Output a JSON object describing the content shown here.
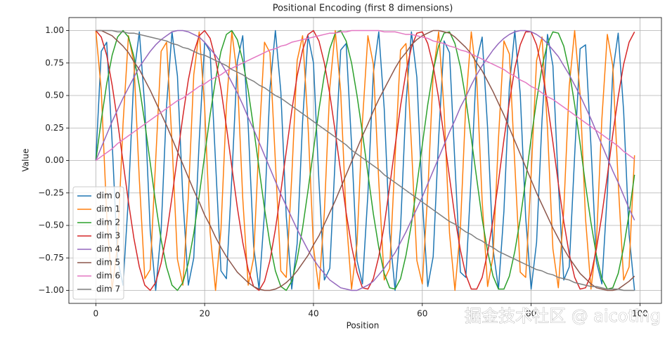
{
  "chart_data": {
    "type": "line",
    "title": "Positional Encoding (first 8 dimensions)",
    "x_label": "Position",
    "y_label": "Value",
    "watermark": "掘金技术社区 @ aicoting",
    "x": [
      0,
      1,
      2,
      3,
      4,
      5,
      6,
      7,
      8,
      9,
      10,
      11,
      12,
      13,
      14,
      15,
      16,
      17,
      18,
      19,
      20,
      21,
      22,
      23,
      24,
      25,
      26,
      27,
      28,
      29,
      30,
      31,
      32,
      33,
      34,
      35,
      36,
      37,
      38,
      39,
      40,
      41,
      42,
      43,
      44,
      45,
      46,
      47,
      48,
      49,
      50,
      51,
      52,
      53,
      54,
      55,
      56,
      57,
      58,
      59,
      60,
      61,
      62,
      63,
      64,
      65,
      66,
      67,
      68,
      69,
      70,
      71,
      72,
      73,
      74,
      75,
      76,
      77,
      78,
      79,
      80,
      81,
      82,
      83,
      84,
      85,
      86,
      87,
      88,
      89,
      90,
      91,
      92,
      93,
      94,
      95,
      96,
      97,
      98,
      99
    ],
    "series": [
      {
        "name": "dim 0",
        "color": "#1f77b4",
        "values": [
          0,
          0.84,
          0.91,
          0.14,
          -0.76,
          -0.96,
          -0.28,
          0.66,
          0.99,
          0.41,
          -0.54,
          -1.0,
          -0.54,
          0.42,
          0.99,
          0.65,
          -0.29,
          -0.96,
          -0.75,
          0.15,
          0.91,
          0.84,
          -0.01,
          -0.85,
          -0.91,
          -0.13,
          0.76,
          0.96,
          0.27,
          -0.66,
          -0.99,
          -0.4,
          0.55,
          1.0,
          0.53,
          -0.43,
          -0.99,
          -0.64,
          0.3,
          0.96,
          0.75,
          -0.16,
          -0.92,
          -0.83,
          0.02,
          0.85,
          0.9,
          0.12,
          -0.77,
          -0.95,
          -0.26,
          0.67,
          0.99,
          0.4,
          -0.56,
          -1.0,
          -0.52,
          0.44,
          0.99,
          0.64,
          -0.3,
          -0.97,
          -0.74,
          0.17,
          0.92,
          0.83,
          -0.03,
          -0.86,
          -0.9,
          -0.11,
          0.77,
          0.95,
          0.25,
          -0.68,
          -0.99,
          -0.39,
          0.57,
          1.0,
          0.51,
          -0.44,
          -0.99,
          -0.63,
          0.31,
          0.97,
          0.73,
          -0.18,
          -0.92,
          -0.82,
          0.04,
          0.86,
          0.89,
          0.11,
          -0.78,
          -0.95,
          -0.25,
          0.68,
          0.98,
          0.38,
          -0.57,
          -1.0
        ]
      },
      {
        "name": "dim 1",
        "color": "#ff7f0e",
        "values": [
          1,
          0.54,
          -0.42,
          -0.99,
          -0.65,
          0.28,
          0.96,
          0.75,
          -0.15,
          -0.91,
          -0.84,
          0.0,
          0.84,
          0.91,
          0.14,
          -0.76,
          -0.96,
          -0.28,
          0.66,
          0.99,
          0.41,
          -0.55,
          -1.0,
          -0.53,
          0.42,
          0.99,
          0.65,
          -0.29,
          -0.96,
          -0.75,
          0.15,
          0.91,
          0.83,
          -0.01,
          -0.85,
          -0.9,
          -0.13,
          0.77,
          0.96,
          0.27,
          -0.67,
          -0.99,
          -0.4,
          0.56,
          1.0,
          0.53,
          -0.43,
          -0.99,
          -0.64,
          0.3,
          0.96,
          0.74,
          -0.16,
          -0.92,
          -0.83,
          0.02,
          0.85,
          0.9,
          0.12,
          -0.77,
          -0.95,
          -0.25,
          0.67,
          0.99,
          0.39,
          -0.56,
          -1.0,
          -0.52,
          0.44,
          0.99,
          0.63,
          -0.31,
          -0.97,
          -0.74,
          0.17,
          0.92,
          0.82,
          -0.03,
          -0.86,
          -0.9,
          -0.11,
          0.77,
          0.95,
          0.25,
          -0.68,
          -0.98,
          -0.38,
          0.57,
          1.0,
          0.51,
          -0.45,
          -0.99,
          -0.63,
          0.32,
          0.97,
          0.73,
          -0.17,
          -0.92,
          -0.82,
          0.04
        ]
      },
      {
        "name": "dim 2",
        "color": "#2ca02c",
        "values": [
          0,
          0.31,
          0.59,
          0.81,
          0.95,
          1.0,
          0.95,
          0.8,
          0.57,
          0.29,
          -0.02,
          -0.33,
          -0.61,
          -0.82,
          -0.96,
          -1.0,
          -0.94,
          -0.79,
          -0.56,
          -0.27,
          0.04,
          0.35,
          0.62,
          0.84,
          0.97,
          1.0,
          0.93,
          0.77,
          0.54,
          0.25,
          -0.06,
          -0.37,
          -0.64,
          -0.85,
          -0.97,
          -1.0,
          -0.93,
          -0.76,
          -0.52,
          -0.23,
          0.08,
          0.39,
          0.66,
          0.86,
          0.98,
          1.0,
          0.92,
          0.75,
          0.5,
          0.21,
          -0.1,
          -0.41,
          -0.67,
          -0.87,
          -0.98,
          -0.99,
          -0.91,
          -0.73,
          -0.49,
          -0.19,
          0.12,
          0.43,
          0.69,
          0.88,
          0.98,
          0.99,
          0.9,
          0.72,
          0.47,
          0.17,
          -0.14,
          -0.45,
          -0.7,
          -0.89,
          -0.99,
          -0.99,
          -0.89,
          -0.7,
          -0.45,
          -0.15,
          0.17,
          0.46,
          0.72,
          0.9,
          0.99,
          0.98,
          0.88,
          0.69,
          0.43,
          0.13,
          -0.19,
          -0.48,
          -0.73,
          -0.91,
          -0.99,
          -0.98,
          -0.87,
          -0.67,
          -0.41,
          -0.11
        ]
      },
      {
        "name": "dim 3",
        "color": "#d62728",
        "values": [
          1,
          0.95,
          0.81,
          0.58,
          0.3,
          -0.01,
          -0.32,
          -0.6,
          -0.82,
          -0.96,
          -1.0,
          -0.94,
          -0.79,
          -0.57,
          -0.28,
          0.03,
          0.34,
          0.62,
          0.83,
          0.96,
          1.0,
          0.94,
          0.78,
          0.55,
          0.26,
          -0.05,
          -0.36,
          -0.63,
          -0.84,
          -0.97,
          -1.0,
          -0.93,
          -0.77,
          -0.53,
          -0.24,
          0.07,
          0.38,
          0.65,
          0.85,
          0.97,
          1.0,
          0.92,
          0.75,
          0.51,
          0.22,
          -0.09,
          -0.4,
          -0.66,
          -0.86,
          -0.98,
          -0.99,
          -0.91,
          -0.74,
          -0.5,
          -0.2,
          0.11,
          0.42,
          0.68,
          0.87,
          0.98,
          0.99,
          0.9,
          0.73,
          0.48,
          0.18,
          -0.13,
          -0.44,
          -0.69,
          -0.88,
          -0.99,
          -0.99,
          -0.9,
          -0.71,
          -0.46,
          -0.16,
          0.16,
          0.45,
          0.71,
          0.89,
          0.99,
          0.99,
          0.89,
          0.7,
          0.44,
          0.14,
          -0.18,
          -0.47,
          -0.72,
          -0.9,
          -0.99,
          -0.98,
          -0.88,
          -0.68,
          -0.42,
          -0.12,
          0.2,
          0.49,
          0.74,
          0.91,
          0.99
        ]
      },
      {
        "name": "dim 4",
        "color": "#9467bd",
        "values": [
          0,
          0.1,
          0.2,
          0.3,
          0.39,
          0.48,
          0.56,
          0.64,
          0.72,
          0.78,
          0.84,
          0.89,
          0.93,
          0.96,
          0.99,
          1.0,
          1.0,
          0.99,
          0.97,
          0.95,
          0.91,
          0.86,
          0.81,
          0.75,
          0.68,
          0.6,
          0.52,
          0.43,
          0.33,
          0.24,
          0.14,
          0.04,
          -0.06,
          -0.16,
          -0.26,
          -0.35,
          -0.44,
          -0.53,
          -0.61,
          -0.69,
          -0.76,
          -0.82,
          -0.87,
          -0.92,
          -0.95,
          -0.98,
          -0.99,
          -1.0,
          -1.0,
          -0.98,
          -0.96,
          -0.93,
          -0.88,
          -0.83,
          -0.77,
          -0.71,
          -0.63,
          -0.55,
          -0.46,
          -0.37,
          -0.28,
          -0.18,
          -0.08,
          0.02,
          0.12,
          0.22,
          0.31,
          0.41,
          0.49,
          0.58,
          0.66,
          0.73,
          0.79,
          0.85,
          0.9,
          0.94,
          0.97,
          0.99,
          1.0,
          1.0,
          0.99,
          0.97,
          0.94,
          0.9,
          0.85,
          0.8,
          0.73,
          0.66,
          0.58,
          0.5,
          0.41,
          0.32,
          0.22,
          0.12,
          0.02,
          -0.08,
          -0.17,
          -0.27,
          -0.37,
          -0.46
        ]
      },
      {
        "name": "dim 5",
        "color": "#8c564b",
        "values": [
          1,
          1.0,
          0.98,
          0.96,
          0.92,
          0.88,
          0.83,
          0.76,
          0.7,
          0.62,
          0.54,
          0.45,
          0.36,
          0.27,
          0.17,
          0.07,
          -0.03,
          -0.13,
          -0.23,
          -0.32,
          -0.42,
          -0.5,
          -0.59,
          -0.67,
          -0.74,
          -0.8,
          -0.86,
          -0.9,
          -0.94,
          -0.97,
          -0.99,
          -1.0,
          -1.0,
          -0.99,
          -0.97,
          -0.94,
          -0.9,
          -0.85,
          -0.79,
          -0.73,
          -0.65,
          -0.58,
          -0.49,
          -0.4,
          -0.31,
          -0.21,
          -0.11,
          -0.01,
          0.09,
          0.19,
          0.28,
          0.38,
          0.47,
          0.55,
          0.63,
          0.71,
          0.78,
          0.83,
          0.89,
          0.93,
          0.96,
          0.98,
          1.0,
          1.0,
          0.99,
          0.98,
          0.95,
          0.91,
          0.87,
          0.82,
          0.75,
          0.69,
          0.61,
          0.53,
          0.44,
          0.35,
          0.25,
          0.15,
          0.05,
          -0.05,
          -0.15,
          -0.25,
          -0.34,
          -0.43,
          -0.52,
          -0.6,
          -0.68,
          -0.75,
          -0.81,
          -0.87,
          -0.91,
          -0.95,
          -0.98,
          -0.99,
          -1.0,
          -1.0,
          -0.99,
          -0.96,
          -0.93,
          -0.89
        ]
      },
      {
        "name": "dim 6",
        "color": "#e377c2",
        "values": [
          0,
          0.03,
          0.06,
          0.09,
          0.13,
          0.16,
          0.19,
          0.22,
          0.25,
          0.28,
          0.31,
          0.34,
          0.37,
          0.4,
          0.43,
          0.46,
          0.48,
          0.51,
          0.54,
          0.57,
          0.59,
          0.62,
          0.64,
          0.66,
          0.69,
          0.71,
          0.73,
          0.75,
          0.77,
          0.79,
          0.81,
          0.83,
          0.85,
          0.86,
          0.88,
          0.89,
          0.91,
          0.92,
          0.93,
          0.94,
          0.95,
          0.96,
          0.97,
          0.98,
          0.98,
          0.99,
          0.99,
          1.0,
          1.0,
          1.0,
          1.0,
          1.0,
          1.0,
          0.99,
          0.99,
          0.99,
          0.98,
          0.97,
          0.97,
          0.96,
          0.95,
          0.94,
          0.92,
          0.91,
          0.9,
          0.88,
          0.87,
          0.85,
          0.84,
          0.82,
          0.8,
          0.78,
          0.76,
          0.74,
          0.72,
          0.7,
          0.67,
          0.65,
          0.62,
          0.6,
          0.57,
          0.55,
          0.52,
          0.49,
          0.47,
          0.44,
          0.41,
          0.38,
          0.35,
          0.32,
          0.29,
          0.26,
          0.23,
          0.2,
          0.17,
          0.14,
          0.11,
          0.07,
          0.04,
          0.01
        ]
      },
      {
        "name": "dim 7",
        "color": "#7f7f7f",
        "values": [
          1,
          1.0,
          1.0,
          1.0,
          0.99,
          0.99,
          0.98,
          0.98,
          0.97,
          0.96,
          0.95,
          0.94,
          0.93,
          0.92,
          0.9,
          0.89,
          0.87,
          0.86,
          0.84,
          0.82,
          0.81,
          0.79,
          0.77,
          0.75,
          0.73,
          0.7,
          0.68,
          0.66,
          0.63,
          0.61,
          0.58,
          0.56,
          0.53,
          0.5,
          0.48,
          0.45,
          0.42,
          0.39,
          0.36,
          0.33,
          0.3,
          0.27,
          0.24,
          0.21,
          0.18,
          0.15,
          0.12,
          0.08,
          0.05,
          0.02,
          -0.01,
          -0.04,
          -0.07,
          -0.11,
          -0.14,
          -0.17,
          -0.2,
          -0.23,
          -0.26,
          -0.29,
          -0.32,
          -0.35,
          -0.38,
          -0.41,
          -0.44,
          -0.47,
          -0.49,
          -0.52,
          -0.55,
          -0.57,
          -0.6,
          -0.62,
          -0.65,
          -0.67,
          -0.7,
          -0.72,
          -0.74,
          -0.76,
          -0.78,
          -0.8,
          -0.82,
          -0.84,
          -0.85,
          -0.87,
          -0.88,
          -0.9,
          -0.91,
          -0.92,
          -0.94,
          -0.95,
          -0.96,
          -0.97,
          -0.97,
          -0.98,
          -0.99,
          -0.99,
          -0.99,
          -1.0,
          -1.0,
          -1.0
        ]
      }
    ],
    "xlim": [
      -4.95,
      103.95
    ],
    "ylim": [
      -1.1,
      1.1
    ],
    "xticks": [
      0,
      20,
      40,
      60,
      80,
      100
    ],
    "yticks": [
      {
        "value": -1,
        "label": "−1.00"
      },
      {
        "value": -0.75,
        "label": "−0.75"
      },
      {
        "value": -0.5,
        "label": "−0.50"
      },
      {
        "value": -0.25,
        "label": "−0.25"
      },
      {
        "value": 0,
        "label": "0.00"
      },
      {
        "value": 0.25,
        "label": "0.25"
      },
      {
        "value": 0.5,
        "label": "0.50"
      },
      {
        "value": 0.75,
        "label": "0.75"
      },
      {
        "value": 1,
        "label": "1.00"
      }
    ],
    "grid": true,
    "legend": "lower left"
  }
}
